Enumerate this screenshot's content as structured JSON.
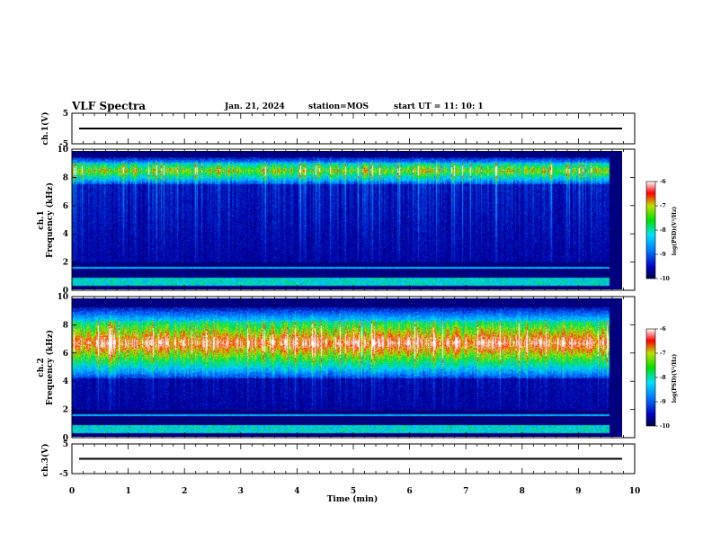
{
  "header": {
    "title": "VLF Spectra",
    "date": "Jan. 21, 2024",
    "station": "station=MOS",
    "start_ut": "start  UT =   11: 10: 1"
  },
  "chart_data": [
    {
      "type": "line",
      "panel": "ch1-waveform",
      "ylabel": "ch.1(V)",
      "ylim": [
        -5,
        5
      ],
      "yticks": [
        "5",
        "-5"
      ],
      "baseline_value": 0,
      "x_range": [
        0,
        10
      ]
    },
    {
      "type": "heatmap",
      "panel": "ch1-spectrogram",
      "ylabel_top": "ch.1",
      "ylabel": "Frequency (kHz)",
      "ylim": [
        0,
        10
      ],
      "yticks": [
        "0",
        "2",
        "4",
        "6",
        "8",
        "10"
      ],
      "x_range": [
        0,
        10
      ],
      "colorbar": {
        "label": "log(PSD)(V²/Hz)",
        "range": [
          -10,
          -6
        ],
        "ticks": [
          "-6",
          "-7",
          "-8",
          "-9",
          "-10"
        ]
      },
      "band_center_khz": 8.6,
      "band_half_width_khz": 0.6,
      "intensity_level": 0.35
    },
    {
      "type": "heatmap",
      "panel": "ch2-spectrogram",
      "ylabel_top": "ch.2",
      "ylabel": "Frequency (kHz)",
      "ylim": [
        0,
        10
      ],
      "yticks": [
        "0",
        "2",
        "4",
        "6",
        "8",
        "10"
      ],
      "x_range": [
        0,
        10
      ],
      "colorbar": {
        "label": "log(PSD)(V²/Hz)",
        "range": [
          -10,
          -6
        ],
        "ticks": [
          "-6",
          "-7",
          "-8",
          "-9",
          "-10"
        ]
      },
      "band_center_khz": 6.8,
      "band_half_width_khz": 1.6,
      "intensity_level": 0.6
    },
    {
      "type": "line",
      "panel": "ch3-waveform",
      "ylabel": "ch.3(V)",
      "ylim": [
        -5,
        5
      ],
      "yticks": [
        "5",
        "-5"
      ],
      "baseline_value": 0,
      "x_range": [
        0,
        10
      ]
    }
  ],
  "xaxis": {
    "label": "Time (min)",
    "ticks": [
      "0",
      "1",
      "2",
      "3",
      "4",
      "5",
      "6",
      "7",
      "8",
      "9",
      "10"
    ]
  }
}
